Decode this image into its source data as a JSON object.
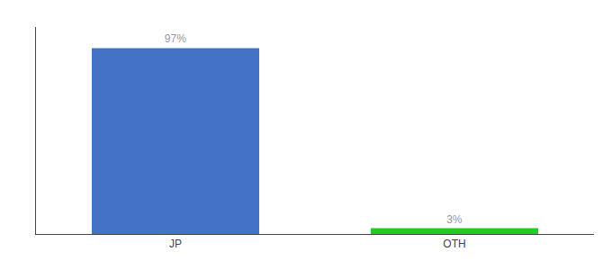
{
  "chart_data": {
    "type": "bar",
    "categories": [
      "JP",
      "OTH"
    ],
    "values": [
      97,
      3
    ],
    "value_labels": [
      "97%",
      "3%"
    ],
    "colors": [
      "#4472c4",
      "#22cc22"
    ],
    "ylim": [
      0,
      108
    ],
    "grid": false,
    "data_labels": true,
    "tick_labels": "x"
  }
}
